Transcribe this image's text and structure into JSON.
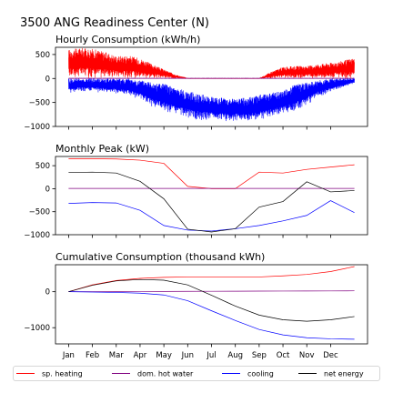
{
  "figure": {
    "suptitle": "3500 ANG Readiness Center (N)",
    "month_labels": [
      "Jan",
      "Feb",
      "Mar",
      "Apr",
      "May",
      "Jun",
      "Jul",
      "Aug",
      "Sep",
      "Oct",
      "Nov",
      "Dec"
    ],
    "colors": {
      "sp_heating": "#ff0000",
      "dom_hot_water": "#800080",
      "cooling": "#0000ff",
      "net_energy": "#000000"
    }
  },
  "legend": {
    "placement": "bottom",
    "items": [
      {
        "label": "sp. heating",
        "color": "#ff0000"
      },
      {
        "label": "dom. hot water",
        "color": "#800080"
      },
      {
        "label": "cooling",
        "color": "#0000ff"
      },
      {
        "label": "net energy",
        "color": "#000000"
      }
    ]
  },
  "chart_data": [
    {
      "type": "line",
      "title": "Hourly Consumption (kWh/h)",
      "ylim": [
        -1000,
        650
      ],
      "yticks": [
        500,
        0,
        -500,
        -1000
      ],
      "ytick_labels": [
        "500",
        "0",
        "−500",
        "−1000"
      ],
      "x_unit": "month",
      "series": [
        {
          "name": "sp. heating",
          "color": "#ff0000",
          "envelope": {
            "x": [
              0,
              0.5,
              1,
              1.5,
              2,
              2.5,
              3,
              3.5,
              4,
              4.5,
              5,
              7,
              8,
              8.5,
              9,
              9.5,
              10,
              10.5,
              11,
              11.5,
              12
            ],
            "upper": [
              600,
              640,
              620,
              560,
              470,
              480,
              420,
              300,
              190,
              80,
              0,
              0,
              0,
              140,
              240,
              260,
              260,
              300,
              330,
              370,
              430
            ],
            "lower": [
              0,
              0,
              0,
              0,
              0,
              0,
              0,
              0,
              0,
              0,
              0,
              0,
              0,
              0,
              0,
              0,
              0,
              0,
              0,
              0,
              0
            ]
          }
        },
        {
          "name": "dom. hot water",
          "color": "#800080",
          "envelope": {
            "x": [
              0,
              12
            ],
            "upper": [
              6,
              6
            ],
            "lower": [
              0,
              0
            ]
          }
        },
        {
          "name": "cooling",
          "color": "#0000ff",
          "envelope": {
            "x": [
              0,
              0.5,
              1,
              1.5,
              2,
              2.5,
              3,
              3.5,
              4,
              4.5,
              5,
              5.5,
              6,
              6.5,
              7,
              7.5,
              8,
              8.5,
              9,
              9.5,
              10,
              10.5,
              11,
              11.5,
              12
            ],
            "upper": [
              0,
              0,
              0,
              0,
              0,
              0,
              -40,
              -60,
              -100,
              -200,
              -260,
              -320,
              -380,
              -400,
              -420,
              -400,
              -340,
              -300,
              -260,
              -120,
              -80,
              -40,
              0,
              0,
              0
            ],
            "lower": [
              -320,
              -280,
              -280,
              -300,
              -320,
              -360,
              -460,
              -600,
              -700,
              -780,
              -840,
              -880,
              -880,
              -900,
              -900,
              -900,
              -880,
              -820,
              -750,
              -700,
              -560,
              -380,
              -300,
              -200,
              -100
            ]
          }
        }
      ]
    },
    {
      "type": "line",
      "title": "Monthly Peak (kW)",
      "ylim": [
        -1000,
        700
      ],
      "yticks": [
        500,
        0,
        -500,
        -1000
      ],
      "ytick_labels": [
        "500",
        "0",
        "−500",
        "−1000"
      ],
      "x": [
        0,
        1,
        2,
        3,
        4,
        5,
        6,
        7,
        8,
        9,
        10,
        11,
        12
      ],
      "series": [
        {
          "name": "sp. heating",
          "color": "#ff0000",
          "values": [
            650,
            650,
            645,
            620,
            550,
            50,
            0,
            0,
            360,
            340,
            420,
            470,
            520
          ]
        },
        {
          "name": "dom. hot water",
          "color": "#800080",
          "values": [
            5,
            5,
            5,
            5,
            5,
            5,
            5,
            5,
            5,
            5,
            5,
            5,
            5
          ]
        },
        {
          "name": "cooling",
          "color": "#0000ff",
          "values": [
            -320,
            -300,
            -310,
            -470,
            -800,
            -900,
            -920,
            -870,
            -800,
            -700,
            -580,
            -260,
            -520
          ]
        },
        {
          "name": "net energy",
          "color": "#000000",
          "values": [
            350,
            360,
            340,
            160,
            -220,
            -880,
            -940,
            -870,
            -400,
            -280,
            150,
            -70,
            -40
          ]
        }
      ]
    },
    {
      "type": "line",
      "title": "Cumulative Consumption (thousand kWh)",
      "ylim": [
        -1450,
        750
      ],
      "yticks": [
        0,
        -1000
      ],
      "ytick_labels": [
        "0",
        "−1000"
      ],
      "x": [
        0,
        1,
        2,
        3,
        4,
        5,
        6,
        7,
        8,
        9,
        10,
        11,
        12
      ],
      "series": [
        {
          "name": "sp. heating",
          "color": "#ff0000",
          "values": [
            0,
            190,
            310,
            370,
            400,
            410,
            410,
            410,
            410,
            440,
            480,
            560,
            700
          ]
        },
        {
          "name": "dom. hot water",
          "color": "#800080",
          "values": [
            0,
            2,
            4,
            6,
            8,
            10,
            12,
            14,
            16,
            18,
            20,
            22,
            24
          ]
        },
        {
          "name": "cooling",
          "color": "#0000ff",
          "values": [
            0,
            -10,
            -20,
            -40,
            -90,
            -250,
            -530,
            -800,
            -1050,
            -1200,
            -1280,
            -1310,
            -1320
          ]
        },
        {
          "name": "net energy",
          "color": "#000000",
          "values": [
            0,
            180,
            300,
            340,
            320,
            190,
            -100,
            -400,
            -650,
            -780,
            -820,
            -780,
            -690
          ]
        }
      ]
    }
  ]
}
